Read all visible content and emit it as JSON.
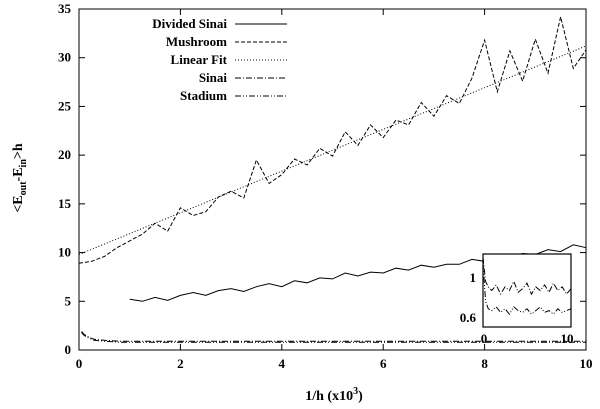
{
  "chart_data": {
    "type": "line",
    "title": "",
    "xlabel": "1/h (x10",
    "xlabel_sup": "3",
    "xlabel_close": ")",
    "ylabel_parts": [
      "<E",
      "out",
      "-E",
      "in",
      ">h"
    ],
    "xlim": [
      0,
      10
    ],
    "ylim": [
      0,
      35
    ],
    "xticks": [
      0,
      2,
      4,
      6,
      8,
      10
    ],
    "yticks": [
      0,
      5,
      10,
      15,
      20,
      25,
      30,
      35
    ],
    "grid": false,
    "legend_position": "top-left",
    "series": [
      {
        "name": "Divided Sinai",
        "style": "solid",
        "x": [
          1.0,
          1.25,
          1.5,
          1.75,
          2.0,
          2.25,
          2.5,
          2.75,
          3.0,
          3.25,
          3.5,
          3.75,
          4.0,
          4.25,
          4.5,
          4.75,
          5.0,
          5.25,
          5.5,
          5.75,
          6.0,
          6.25,
          6.5,
          6.75,
          7.0,
          7.25,
          7.5,
          7.75,
          8.0,
          8.25,
          8.5,
          8.75,
          9.0,
          9.25,
          9.5,
          9.75,
          10.0
        ],
        "y": [
          5.2,
          5.0,
          5.4,
          5.1,
          5.6,
          5.9,
          5.6,
          6.1,
          6.3,
          6.0,
          6.5,
          6.8,
          6.5,
          7.1,
          6.9,
          7.4,
          7.3,
          7.9,
          7.6,
          8.0,
          7.9,
          8.4,
          8.2,
          8.7,
          8.5,
          8.8,
          8.8,
          9.3,
          9.1,
          9.6,
          9.5,
          9.9,
          9.8,
          10.3,
          10.1,
          10.8,
          10.5
        ]
      },
      {
        "name": "Mushroom",
        "style": "dashed",
        "x": [
          0.0,
          0.25,
          0.5,
          0.75,
          1.0,
          1.25,
          1.5,
          1.75,
          2.0,
          2.25,
          2.5,
          2.75,
          3.0,
          3.25,
          3.5,
          3.75,
          4.0,
          4.25,
          4.5,
          4.75,
          5.0,
          5.25,
          5.5,
          5.75,
          6.0,
          6.25,
          6.5,
          6.75,
          7.0,
          7.25,
          7.5,
          7.75,
          8.0,
          8.25,
          8.5,
          8.75,
          9.0,
          9.25,
          9.5,
          9.75,
          10.0
        ],
        "y": [
          8.9,
          9.1,
          9.6,
          10.5,
          11.2,
          11.9,
          13.0,
          12.2,
          14.6,
          13.8,
          14.2,
          15.7,
          16.3,
          15.6,
          19.5,
          17.1,
          18.0,
          19.6,
          19.0,
          20.7,
          19.9,
          22.4,
          21.0,
          23.1,
          21.8,
          23.6,
          23.1,
          25.4,
          24.0,
          26.1,
          25.3,
          27.9,
          31.8,
          26.5,
          30.7,
          27.6,
          31.9,
          28.4,
          34.2,
          28.9,
          30.8
        ]
      },
      {
        "name": "Linear Fit",
        "style": "dotted",
        "x": [
          0,
          10
        ],
        "y": [
          9.8,
          31.2
        ]
      },
      {
        "name": "Sinai",
        "style": "dashdot",
        "x": [
          0.05,
          0.1,
          0.2,
          0.3,
          0.5,
          0.8,
          1.0,
          1.5,
          2.0,
          3.0,
          4.0,
          5.0,
          6.0,
          7.0,
          8.0,
          9.0,
          10.0
        ],
        "y": [
          1.9,
          1.6,
          1.3,
          1.1,
          1.0,
          0.9,
          0.9,
          0.9,
          0.9,
          0.9,
          0.9,
          0.9,
          0.9,
          0.9,
          0.9,
          0.9,
          0.9
        ]
      },
      {
        "name": "Stadium",
        "style": "dashdotdot",
        "x": [
          0.05,
          0.1,
          0.2,
          0.3,
          0.5,
          0.8,
          1.0,
          1.5,
          2.0,
          3.0,
          4.0,
          5.0,
          6.0,
          7.0,
          8.0,
          9.0,
          10.0
        ],
        "y": [
          1.8,
          1.5,
          1.2,
          1.0,
          0.9,
          0.8,
          0.8,
          0.8,
          0.8,
          0.8,
          0.8,
          0.8,
          0.8,
          0.8,
          0.8,
          0.8,
          0.8
        ]
      }
    ],
    "inset": {
      "xticks": [
        "0",
        "10"
      ],
      "yticks": [
        "1",
        "0.6"
      ],
      "xlim": [
        0,
        10
      ],
      "ylim": [
        0.6,
        1.0
      ],
      "series": [
        {
          "style": "dashdot",
          "x": [
            0.0,
            0.3,
            0.6,
            1.0,
            1.5,
            2.0,
            2.5,
            3.0,
            3.5,
            4.0,
            4.5,
            5.0,
            5.5,
            6.0,
            6.5,
            7.0,
            7.5,
            8.0,
            8.5,
            9.0,
            9.5,
            10.0
          ],
          "y": [
            0.98,
            0.85,
            0.82,
            0.8,
            0.83,
            0.78,
            0.82,
            0.8,
            0.85,
            0.79,
            0.81,
            0.84,
            0.78,
            0.82,
            0.8,
            0.83,
            0.79,
            0.84,
            0.8,
            0.82,
            0.78,
            0.81
          ]
        },
        {
          "style": "dashdotdot",
          "x": [
            0.0,
            0.3,
            0.6,
            1.0,
            1.5,
            2.0,
            2.5,
            3.0,
            3.5,
            4.0,
            4.5,
            5.0,
            5.5,
            6.0,
            6.5,
            7.0,
            7.5,
            8.0,
            8.5,
            9.0,
            9.5,
            10.0
          ],
          "y": [
            0.95,
            0.74,
            0.7,
            0.69,
            0.71,
            0.68,
            0.7,
            0.67,
            0.71,
            0.69,
            0.68,
            0.7,
            0.67,
            0.69,
            0.71,
            0.68,
            0.69,
            0.67,
            0.7,
            0.68,
            0.69,
            0.7
          ]
        }
      ]
    }
  }
}
